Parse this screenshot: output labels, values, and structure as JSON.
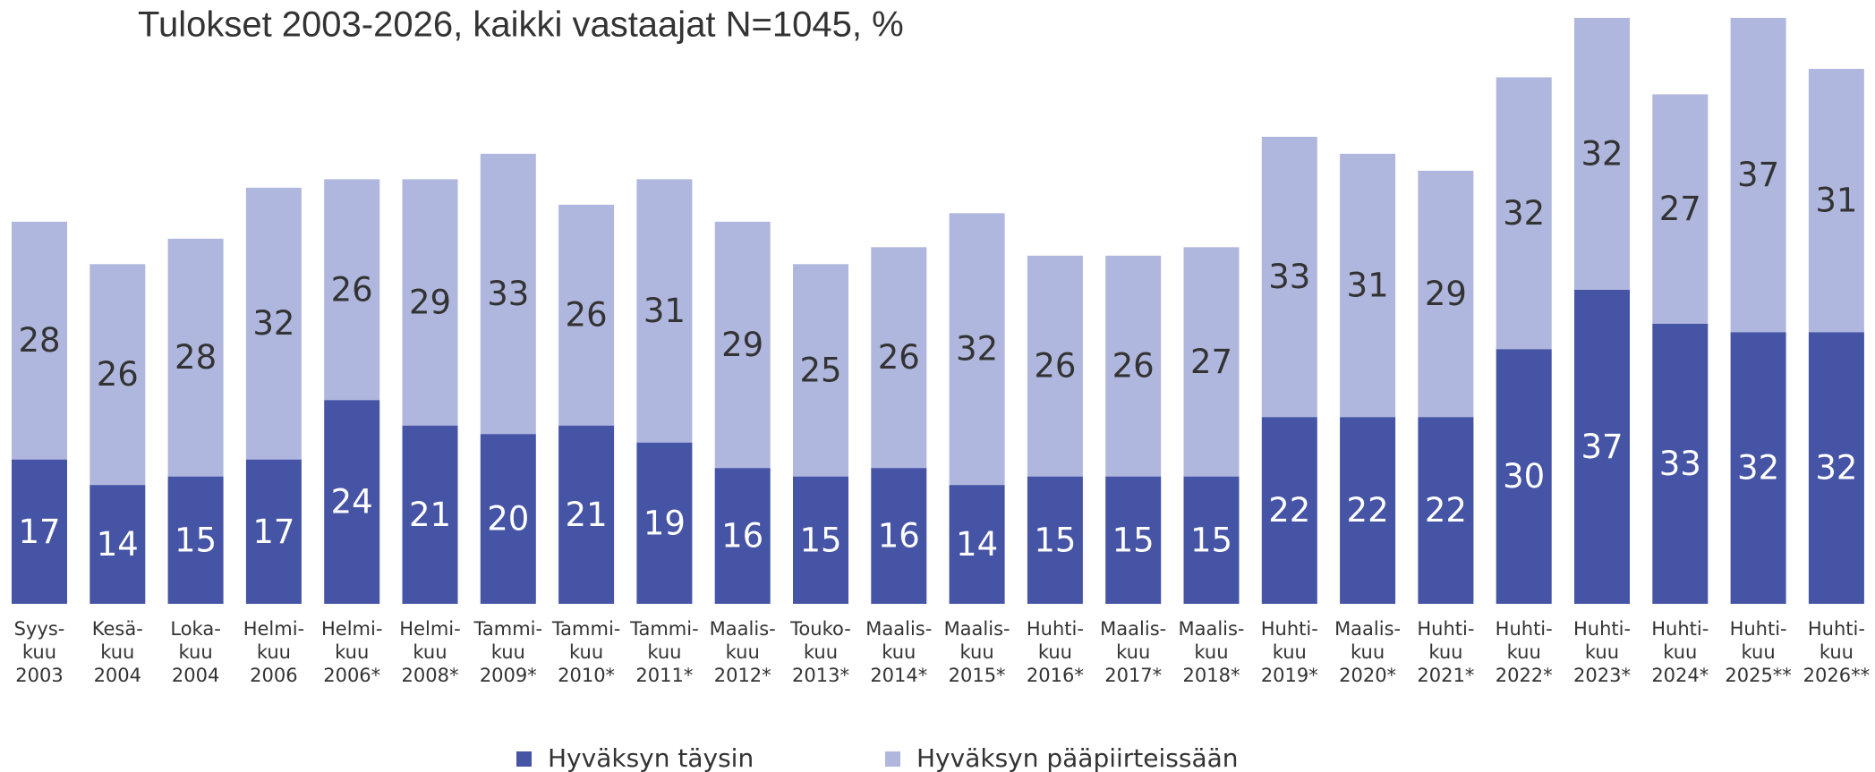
{
  "chart_data": {
    "type": "stacked_bar",
    "title": "Tulokset 2003-2026, kaikki vastaajat N=1045, %",
    "categories": [
      [
        "Syys-",
        "kuu",
        "2003"
      ],
      [
        "Kesä-",
        "kuu",
        "2004"
      ],
      [
        "Loka-",
        "kuu",
        "2004"
      ],
      [
        "Helmi-",
        "kuu",
        "2006"
      ],
      [
        "Helmi-",
        "kuu",
        "2006*"
      ],
      [
        "Helmi-",
        "kuu",
        "2008*"
      ],
      [
        "Tammi-",
        "kuu",
        "2009*"
      ],
      [
        "Tammi-",
        "kuu",
        "2010*"
      ],
      [
        "Tammi-",
        "kuu",
        "2011*"
      ],
      [
        "Maalis-",
        "kuu",
        "2012*"
      ],
      [
        "Touko-",
        "kuu",
        "2013*"
      ],
      [
        "Maalis-",
        "kuu",
        "2014*"
      ],
      [
        "Maalis-",
        "kuu",
        "2015*"
      ],
      [
        "Huhti-",
        "kuu",
        "2016*"
      ],
      [
        "Maalis-",
        "kuu",
        "2017*"
      ],
      [
        "Maalis-",
        "kuu",
        "2018*"
      ],
      [
        "Huhti-",
        "kuu",
        "2019*"
      ],
      [
        "Maalis-",
        "kuu",
        "2020*"
      ],
      [
        "Huhti-",
        "kuu",
        "2021*"
      ],
      [
        "Huhti-",
        "kuu",
        "2022*"
      ],
      [
        "Huhti-",
        "kuu",
        "2023*"
      ],
      [
        "Huhti-",
        "kuu",
        "2024*"
      ],
      [
        "Huhti-",
        "kuu",
        "2025**"
      ],
      [
        "Huhti-",
        "kuu",
        "2026**"
      ]
    ],
    "series": [
      {
        "name": "Hyväksyn täysin",
        "color": "#4654a6",
        "label_color": "#ffffff",
        "values": [
          17,
          14,
          15,
          17,
          24,
          21,
          20,
          21,
          19,
          16,
          15,
          16,
          14,
          15,
          15,
          15,
          22,
          22,
          22,
          30,
          37,
          33,
          32,
          32
        ]
      },
      {
        "name": "Hyväksyn pääpiirteissään",
        "color": "#b0b7de",
        "label_color": "#333333",
        "values": [
          28,
          26,
          28,
          32,
          26,
          29,
          33,
          26,
          31,
          29,
          25,
          26,
          32,
          26,
          26,
          27,
          33,
          31,
          29,
          32,
          32,
          27,
          37,
          31
        ]
      }
    ]
  }
}
